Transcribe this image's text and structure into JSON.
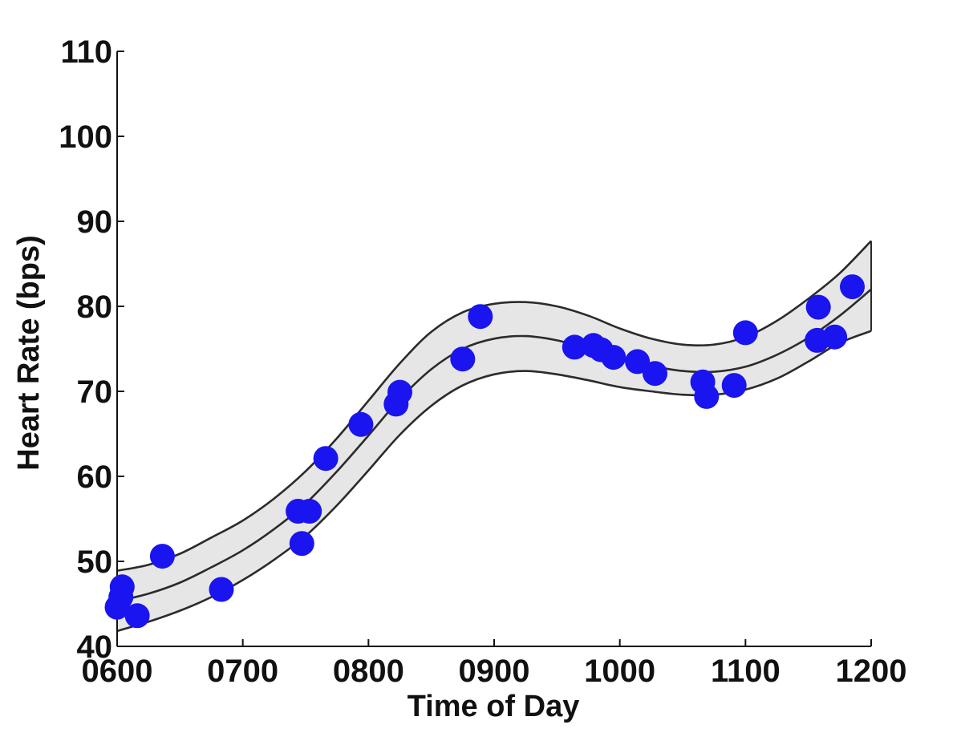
{
  "chart_data": {
    "type": "scatter",
    "title": "",
    "xlabel": "Time of Day",
    "ylabel": "Heart Rate (bps)",
    "xlim": [
      600,
      1200
    ],
    "ylim": [
      40,
      110
    ],
    "xticks": [
      600,
      700,
      800,
      900,
      1000,
      1100,
      1200
    ],
    "xtick_labels": [
      "0600",
      "0700",
      "0800",
      "0900",
      "1000",
      "1100",
      "1200"
    ],
    "yticks": [
      40,
      50,
      60,
      70,
      80,
      90,
      100,
      110
    ],
    "ytick_labels": [
      "40",
      "50",
      "60",
      "70",
      "80",
      "90",
      "100",
      "110"
    ],
    "grid": false,
    "colors": {
      "points": "#1a14f0",
      "band_fill": "#e6e6e6",
      "lines": "#2b2b2b"
    },
    "points": {
      "x": [
        600,
        603,
        604,
        616,
        636,
        683,
        744,
        747,
        753,
        766,
        794,
        822,
        825,
        875,
        889,
        964,
        979,
        985,
        995,
        1014,
        1028,
        1066,
        1069,
        1091,
        1100,
        1157,
        1158,
        1171,
        1185
      ],
      "y": [
        44.6,
        45.8,
        47.0,
        43.6,
        50.6,
        46.7,
        55.9,
        52.1,
        55.9,
        62.1,
        66.1,
        68.5,
        69.9,
        73.8,
        78.8,
        75.2,
        75.4,
        74.9,
        74.0,
        73.5,
        72.1,
        71.1,
        69.4,
        70.7,
        76.9,
        76.0,
        79.9,
        76.4,
        82.3
      ]
    },
    "fit_curve": {
      "x": [
        600,
        625,
        650,
        675,
        700,
        725,
        750,
        775,
        800,
        825,
        850,
        875,
        900,
        925,
        950,
        975,
        1000,
        1025,
        1050,
        1075,
        1100,
        1125,
        1150,
        1175,
        1200
      ],
      "y": [
        45.3,
        46.2,
        47.5,
        49.3,
        51.3,
        53.8,
        56.8,
        60.6,
        64.8,
        69.1,
        72.6,
        75.0,
        76.2,
        76.5,
        76.0,
        75.0,
        73.9,
        73.0,
        72.4,
        72.3,
        72.9,
        74.3,
        76.3,
        78.9,
        82.0
      ]
    },
    "upper_bound": {
      "x": [
        600,
        625,
        650,
        675,
        700,
        725,
        750,
        775,
        800,
        825,
        850,
        875,
        900,
        925,
        950,
        975,
        1000,
        1025,
        1050,
        1075,
        1100,
        1125,
        1150,
        1175,
        1200
      ],
      "y": [
        48.9,
        49.6,
        50.9,
        52.8,
        54.8,
        57.4,
        60.6,
        64.5,
        68.9,
        73.3,
        77.0,
        79.3,
        80.3,
        80.5,
        80.0,
        78.9,
        77.4,
        76.2,
        75.5,
        75.5,
        76.4,
        78.3,
        80.9,
        83.9,
        87.7
      ]
    },
    "lower_bound": {
      "x": [
        600,
        625,
        650,
        675,
        700,
        725,
        750,
        775,
        800,
        825,
        850,
        875,
        900,
        925,
        950,
        975,
        1000,
        1025,
        1050,
        1075,
        1100,
        1125,
        1150,
        1175,
        1200
      ],
      "y": [
        41.8,
        42.9,
        44.2,
        45.8,
        47.8,
        50.2,
        53.0,
        56.6,
        60.7,
        64.9,
        68.3,
        70.7,
        72.0,
        72.4,
        72.0,
        71.3,
        70.5,
        70.0,
        69.6,
        69.6,
        70.2,
        71.5,
        73.5,
        75.7,
        77.1
      ]
    }
  }
}
